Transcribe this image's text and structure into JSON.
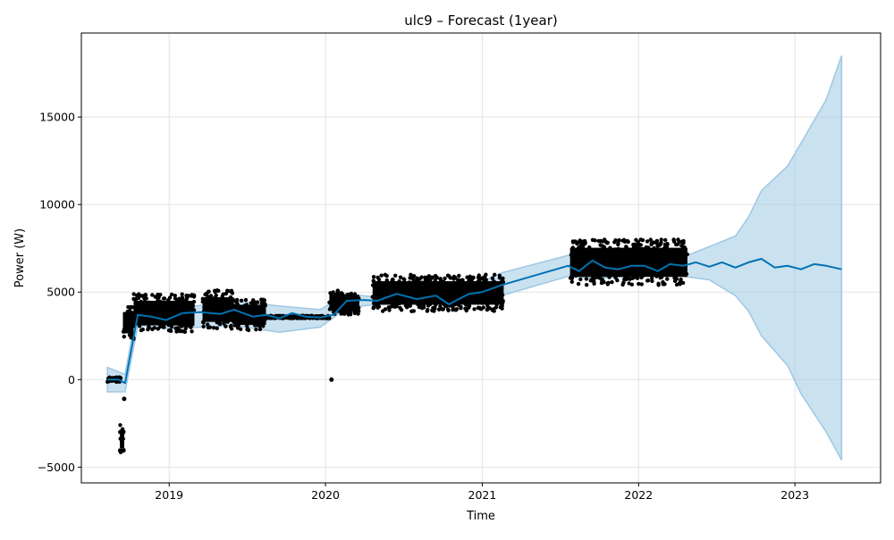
{
  "chart_data": {
    "type": "line",
    "title": "ulc9 – Forecast (1year)",
    "xlabel": "Time",
    "ylabel": "Power (W)",
    "xlim": [
      "2018-06-10",
      "2023-07-20"
    ],
    "ylim": [
      -5900,
      19800
    ],
    "x_ticks": [
      "2019-01-01",
      "2020-01-01",
      "2021-01-01",
      "2022-01-01",
      "2023-01-01"
    ],
    "x_tick_labels": [
      "2019",
      "2020",
      "2021",
      "2022",
      "2023"
    ],
    "y_ticks": [
      -5000,
      0,
      5000,
      10000,
      15000
    ],
    "y_tick_labels": [
      "−5000",
      "0",
      "5000",
      "10000",
      "15000"
    ],
    "grid": true,
    "colors": {
      "forecast_line": "#0072b2",
      "uncertainty_band": "#9ec8e4",
      "observed_points": "#000000"
    },
    "series": [
      {
        "role": "forecast",
        "kind": "line",
        "x": [
          "2018-08-10",
          "2018-09-05",
          "2018-09-20",
          "2018-10-20",
          "2018-11-20",
          "2018-12-25",
          "2019-02-01",
          "2019-03-15",
          "2019-05-01",
          "2019-06-01",
          "2019-07-15",
          "2019-08-15",
          "2019-09-15",
          "2019-10-15",
          "2019-11-15",
          "2019-12-20",
          "2020-01-20",
          "2020-02-20",
          "2020-04-01",
          "2020-05-01",
          "2020-06-15",
          "2020-08-01",
          "2020-09-15",
          "2020-10-15",
          "2020-12-01",
          "2021-01-01",
          "2021-02-15",
          "2021-07-20",
          "2021-08-15",
          "2021-09-15",
          "2021-10-15",
          "2021-11-15",
          "2021-12-15",
          "2022-01-15",
          "2022-02-15",
          "2022-03-15",
          "2022-04-15",
          "2022-05-15",
          "2022-06-15",
          "2022-07-15",
          "2022-08-15",
          "2022-09-15",
          "2022-10-15",
          "2022-11-15",
          "2022-12-15",
          "2023-01-15",
          "2023-02-15",
          "2023-03-15",
          "2023-04-20"
        ],
        "y": [
          0,
          0,
          -200,
          3700,
          3600,
          3400,
          3800,
          3850,
          3750,
          4000,
          3600,
          3700,
          3500,
          3800,
          3600,
          3550,
          3700,
          4500,
          4550,
          4500,
          4900,
          4600,
          4800,
          4300,
          4900,
          5000,
          5400,
          6500,
          6200,
          6800,
          6400,
          6300,
          6500,
          6500,
          6200,
          6600,
          6500,
          6700,
          6450,
          6700,
          6400,
          6700,
          6900,
          6400,
          6500,
          6300,
          6600,
          6500,
          6300
        ]
      },
      {
        "role": "uncertainty_upper",
        "kind": "band",
        "x": [
          "2018-08-10",
          "2018-09-20",
          "2018-10-20",
          "2019-01-01",
          "2019-06-01",
          "2019-09-15",
          "2019-12-20",
          "2020-02-20",
          "2020-05-01",
          "2021-01-01",
          "2021-02-15",
          "2021-07-20",
          "2021-09-15",
          "2022-01-15",
          "2022-04-15",
          "2022-06-15",
          "2022-08-15",
          "2022-09-15",
          "2022-10-15",
          "2022-12-15",
          "2023-01-15",
          "2023-03-15",
          "2023-04-20"
        ],
        "y": [
          700,
          300,
          4300,
          4000,
          4500,
          4200,
          4000,
          4900,
          4700,
          5600,
          6100,
          7100,
          7300,
          7000,
          7000,
          7600,
          8200,
          9300,
          10800,
          12200,
          13500,
          16000,
          18500
        ]
      },
      {
        "role": "uncertainty_lower",
        "kind": "band",
        "x": [
          "2018-08-10",
          "2018-09-20",
          "2018-10-20",
          "2019-01-01",
          "2019-06-01",
          "2019-09-15",
          "2019-12-20",
          "2020-02-20",
          "2020-05-01",
          "2021-01-01",
          "2021-02-15",
          "2021-07-20",
          "2021-09-15",
          "2022-01-15",
          "2022-04-15",
          "2022-06-15",
          "2022-08-15",
          "2022-09-15",
          "2022-10-15",
          "2022-12-15",
          "2023-01-15",
          "2023-03-15",
          "2023-04-20"
        ],
        "y": [
          -700,
          -700,
          3100,
          2900,
          3100,
          2700,
          3000,
          4100,
          4300,
          4400,
          4800,
          5900,
          5800,
          5900,
          5900,
          5700,
          4800,
          3900,
          2500,
          800,
          -800,
          -3000,
          -4600
        ]
      },
      {
        "role": "observed",
        "kind": "scatter_clusters",
        "clusters": [
          {
            "x_start": "2018-08-10",
            "x_end": "2018-09-10",
            "y_low": -150,
            "y_high": 150
          },
          {
            "x_start": "2018-09-08",
            "x_end": "2018-09-18",
            "y_low": -4200,
            "y_high": -2600
          },
          {
            "x_start": "2018-09-15",
            "x_end": "2018-10-10",
            "y_low": 2300,
            "y_high": 4200
          },
          {
            "x_start": "2018-10-10",
            "x_end": "2019-03-01",
            "y_low": 2700,
            "y_high": 4900
          },
          {
            "x_start": "2019-03-20",
            "x_end": "2019-06-01",
            "y_low": 2900,
            "y_high": 5100
          },
          {
            "x_start": "2019-06-01",
            "x_end": "2019-08-15",
            "y_low": 2800,
            "y_high": 4600
          },
          {
            "x_start": "2019-08-15",
            "x_end": "2020-01-10",
            "y_low": 3500,
            "y_high": 3650
          },
          {
            "x_start": "2020-01-10",
            "x_end": "2020-03-20",
            "y_low": 3700,
            "y_high": 5100
          },
          {
            "x_start": "2020-04-20",
            "x_end": "2021-02-20",
            "y_low": 3900,
            "y_high": 6000
          },
          {
            "x_start": "2021-07-25",
            "x_end": "2022-04-25",
            "y_low": 5400,
            "y_high": 8000
          }
        ],
        "outliers": [
          {
            "x": "2018-09-18",
            "y": -1100
          },
          {
            "x": "2020-01-15",
            "y": 0
          }
        ]
      }
    ]
  }
}
